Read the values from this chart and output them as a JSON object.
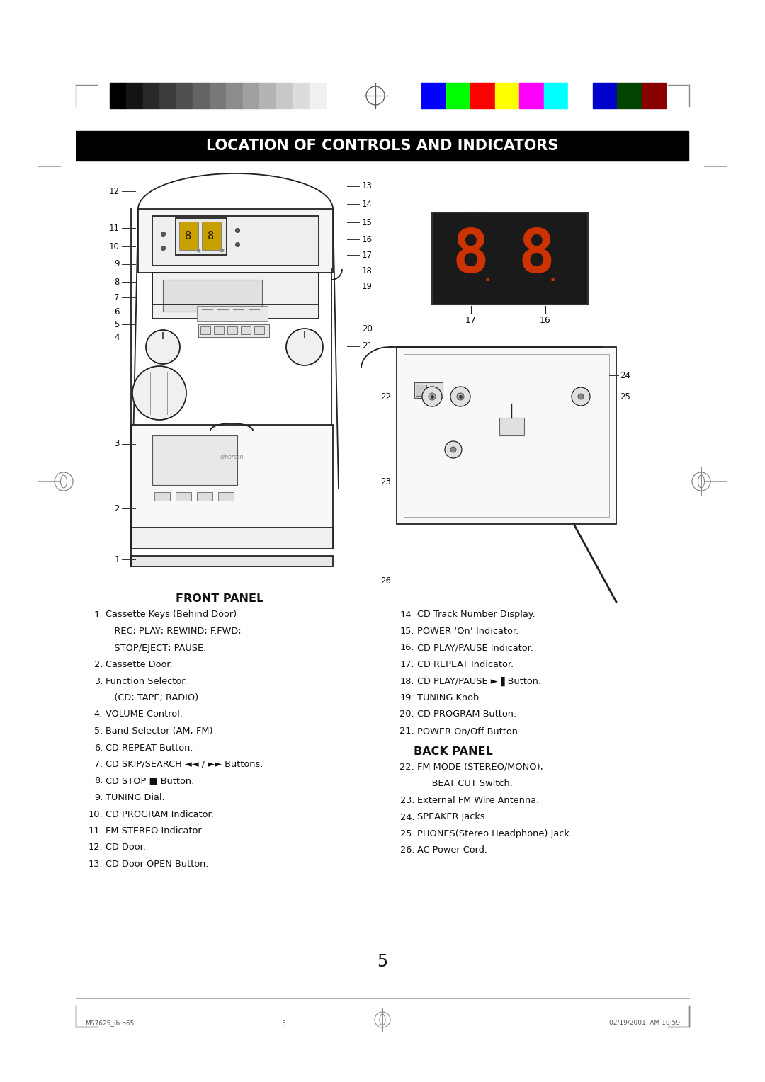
{
  "title": "LOCATION OF CONTROLS AND INDICATORS",
  "title_bg": "#000000",
  "title_color": "#ffffff",
  "page_number": "5",
  "footer_left": "MS7625_ib.p65",
  "footer_center": "5",
  "footer_right": "02/19/2001, AM 10:59",
  "front_panel_title": "FRONT PANEL",
  "back_panel_title": "BACK PANEL",
  "grayscale_colors": [
    "#000000",
    "#141414",
    "#282828",
    "#3c3c3c",
    "#505050",
    "#646464",
    "#787878",
    "#8c8c8c",
    "#a0a0a0",
    "#b4b4b4",
    "#c8c8c8",
    "#dcdcdc",
    "#f0f0f0"
  ],
  "color_bars": [
    "#0000ff",
    "#00ff00",
    "#ff0000",
    "#ffff00",
    "#ff00ff",
    "#00ffff",
    "#ffffff",
    "#0000cc",
    "#004400",
    "#880000"
  ],
  "bg_color": "#ffffff",
  "lc": "#111111",
  "line_lw": 1.2
}
